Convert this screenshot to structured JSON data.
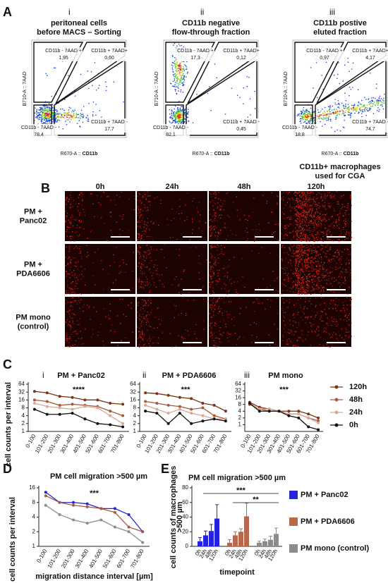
{
  "panel_a": {
    "label": "A",
    "y_axis": "B710-A :: 7AAD",
    "x_axis_prefix": "R670-A :: ",
    "x_axis_marker": "CD11b",
    "note": [
      "CD11b+ macrophages",
      "used for CGA"
    ],
    "plots": [
      {
        "numeral": "i",
        "title": [
          "peritoneal cells",
          "before MACS – Sorting"
        ],
        "gates": [
          {
            "label": "CD11b - 7AAD +",
            "value": "1,95"
          },
          {
            "label": "CD11b + 7AAD+",
            "value": "0,60"
          },
          {
            "label": "CD11b - 7AAD -",
            "value": "78,4"
          },
          {
            "label": "CD11b + 7AAD -",
            "value": "17,7"
          }
        ]
      },
      {
        "numeral": "ii",
        "title": [
          "CD11b negative",
          "flow-through fraction"
        ],
        "gates": [
          {
            "label": "CD11b - 7AAD +",
            "value": "17,3"
          },
          {
            "label": "CD11b + 7AAD+",
            "value": "0,12"
          },
          {
            "label": "CD11b - 7AAD -",
            "value": "82,1"
          },
          {
            "label": "CD11b + 7AAD -",
            "value": "0,45"
          }
        ]
      },
      {
        "numeral": "iii",
        "title": [
          "CD11b postive",
          "eluted fraction"
        ],
        "gates": [
          {
            "label": "CD11b - 7AAD +",
            "value": "0,97"
          },
          {
            "label": "CD11b + 7AAD+",
            "value": "4,17"
          },
          {
            "label": "CD11b - 7AAD -",
            "value": "18,8"
          },
          {
            "label": "CD11b + 7AAD -",
            "value": "74,7"
          }
        ]
      }
    ]
  },
  "panel_b": {
    "label": "B",
    "columns": [
      "0h",
      "24h",
      "48h",
      "120h"
    ],
    "rows": [
      [
        "PM +",
        "Panc02"
      ],
      [
        "PM +",
        "PDA6606"
      ],
      [
        "PM mono",
        "(control)"
      ]
    ]
  },
  "chart_data": [
    {
      "type": "line",
      "panel": "C",
      "numeral": "i",
      "title": "PM + Panc02",
      "annotation": "****",
      "y_label": "cell counts per interval",
      "categories": [
        "0-100",
        "101-200",
        "201-300",
        "301-400",
        "401-500",
        "501-600",
        "601-700",
        "701-800"
      ],
      "log_scale": true,
      "ylim": [
        1,
        64
      ],
      "yticks": [
        1,
        2,
        4,
        8,
        16,
        32,
        64
      ],
      "series": [
        {
          "color": "#7a3414",
          "values": [
            34,
            30,
            22,
            20,
            16,
            16,
            12,
            11
          ]
        },
        {
          "color": "#a8583a",
          "values": [
            16,
            14,
            10,
            11,
            10,
            9,
            6,
            4
          ]
        },
        {
          "color": "#d9a796",
          "values": [
            12,
            9,
            8,
            7,
            9,
            8,
            4,
            2
          ]
        },
        {
          "color": "#111111",
          "values": [
            7,
            4.5,
            4.5,
            5,
            3,
            2,
            1.8,
            1.5
          ]
        }
      ]
    },
    {
      "type": "line",
      "numeral": "ii",
      "title": "PM + PDA6606",
      "annotation": "***",
      "categories": [
        "0-100",
        "101-200",
        "201-300",
        "301-400",
        "401-500",
        "501-600",
        "601-700",
        "701-800"
      ],
      "log_scale": true,
      "ylim": [
        1,
        64
      ],
      "yticks": [
        1,
        2,
        4,
        8,
        16,
        32,
        64
      ],
      "series": [
        {
          "color": "#7a3414",
          "values": [
            30,
            28,
            24,
            20,
            18,
            12,
            10,
            6
          ]
        },
        {
          "color": "#a8583a",
          "values": [
            14,
            12,
            10,
            9,
            7,
            8,
            4,
            3
          ]
        },
        {
          "color": "#d9a796",
          "values": [
            10,
            7,
            5,
            7,
            5,
            4,
            3,
            3
          ]
        },
        {
          "color": "#111111",
          "values": [
            6,
            5,
            2,
            5,
            2,
            2.5,
            3,
            2.5
          ]
        }
      ]
    },
    {
      "type": "line",
      "numeral": "iii",
      "title": "PM mono",
      "annotation": "***",
      "legend": "right",
      "categories": [
        "0-100",
        "101-200",
        "201-300",
        "301-400",
        "401-500",
        "501-600",
        "601-700",
        "701-800"
      ],
      "log_scale": true,
      "ylim": [
        0.5,
        64
      ],
      "yticks": [
        1,
        2,
        4,
        8,
        16,
        32,
        64
      ],
      "series": [
        {
          "name": "120h",
          "color": "#7a3414",
          "values": [
            10,
            6,
            5,
            4,
            4,
            4,
            3,
            2
          ]
        },
        {
          "name": "48h",
          "color": "#a8583a",
          "values": [
            8,
            5,
            4,
            4,
            3,
            3,
            2,
            1.5
          ]
        },
        {
          "name": "24h",
          "color": "#d9a796",
          "values": [
            9,
            5,
            5,
            4,
            3,
            3,
            2,
            1.2
          ]
        },
        {
          "name": "0h",
          "color": "#111111",
          "values": [
            9,
            4,
            4,
            4,
            2.5,
            2,
            0.8,
            0.6
          ]
        }
      ]
    },
    {
      "type": "line",
      "panel": "D",
      "title": "PM cell migration >500 µm",
      "annotation": "***",
      "y_label": "cell counts per interval",
      "x_label": "migration distance interval [µm]",
      "categories": [
        "0-100",
        "101-200",
        "201-300",
        "301-400",
        "401-500",
        "501-600",
        "601-700",
        "701-800"
      ],
      "log_scale": true,
      "ylim": [
        1,
        16
      ],
      "yticks": [
        1,
        2,
        4,
        8,
        16
      ],
      "series": [
        {
          "color": "#2323d8",
          "values": [
            13,
            8,
            8,
            7.5,
            6,
            6,
            4.5,
            2
          ]
        },
        {
          "color": "#a85a3c",
          "values": [
            11,
            8,
            7,
            6.5,
            6,
            5,
            2.5,
            2
          ]
        },
        {
          "color": "#8c8c8c",
          "values": [
            7,
            4.5,
            3.5,
            3,
            3.5,
            2.5,
            2,
            1.2
          ]
        }
      ]
    },
    {
      "type": "bar",
      "panel": "E",
      "title": "PM cell migration >500 µm",
      "y_label": [
        "cell counts of macrophages",
        ">500 µm"
      ],
      "x_label": "timepoint",
      "categories": [
        "0h",
        "24h",
        "48h",
        "120h"
      ],
      "ylim": [
        0,
        80
      ],
      "yticks": [
        0,
        20,
        40,
        60,
        80
      ],
      "annotations": [
        "***",
        "**"
      ],
      "legend": "right",
      "series": [
        {
          "name": "PM + Panc02",
          "color": "#2323e0",
          "values": [
            7,
            15,
            21,
            38
          ],
          "errors": [
            5,
            6,
            9,
            19
          ]
        },
        {
          "name": "PM + PDA6606",
          "color": "#b8684c",
          "values": [
            5,
            15,
            20,
            41
          ],
          "errors": [
            4,
            5,
            4,
            18
          ]
        },
        {
          "name": "PM mono (control)",
          "color": "#8c8c8c",
          "values": [
            5,
            7,
            9,
            17
          ],
          "errors": [
            2,
            3,
            5,
            8
          ]
        }
      ]
    }
  ]
}
